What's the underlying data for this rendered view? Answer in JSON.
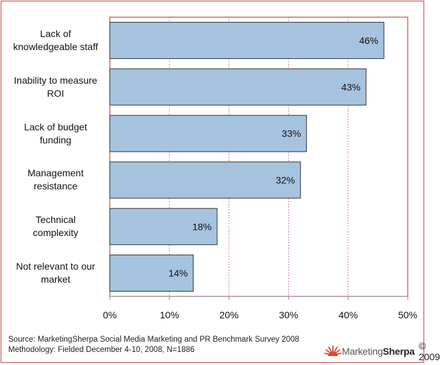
{
  "chart_data": {
    "type": "bar",
    "orientation": "horizontal",
    "categories": [
      [
        "Lack of",
        "knowledgeable staff"
      ],
      [
        "Inability to measure",
        "ROI"
      ],
      [
        "Lack of budget",
        "funding"
      ],
      [
        "Management",
        "resistance"
      ],
      [
        "Technical",
        "complexity"
      ],
      [
        "Not relevant to our",
        "market"
      ]
    ],
    "values": [
      46,
      43,
      33,
      32,
      18,
      14
    ],
    "value_labels": [
      "46%",
      "43%",
      "33%",
      "32%",
      "18%",
      "14%"
    ],
    "xlim": [
      0,
      50
    ],
    "x_ticks": [
      0,
      10,
      20,
      30,
      40,
      50
    ],
    "x_tick_labels": [
      "0%",
      "10%",
      "20%",
      "30%",
      "40%",
      "50%"
    ],
    "grid": "vertical dotted",
    "colors": {
      "bar_fill": "#a6c3df",
      "bar_stroke": "#333333",
      "plot_border": "#c0504d",
      "grid": "#c0504d"
    }
  },
  "footer": {
    "source": "Source: MarketingSherpa Social Media Marketing and PR Benchmark Survey 2008",
    "methodology": "Methodology: Fielded December 4-10, 2008, N=1886",
    "logo_word1": "Marketing",
    "logo_word2": "Sherpa",
    "copyright": "© 2009"
  }
}
